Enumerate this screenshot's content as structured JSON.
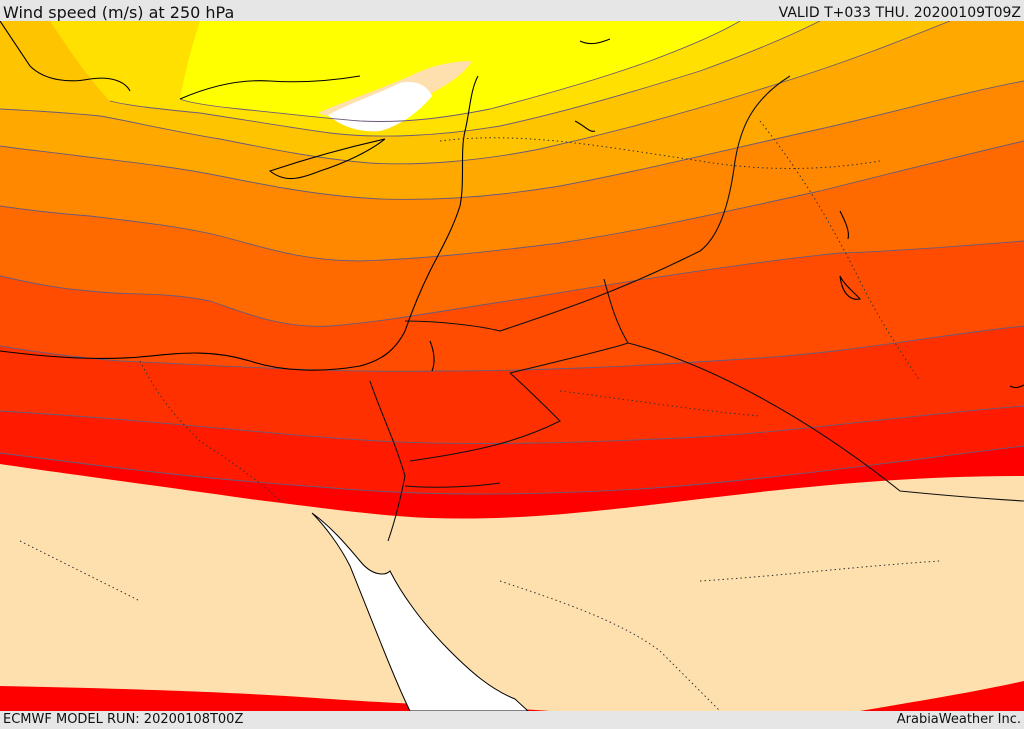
{
  "header": {
    "title": "Wind speed (m/s) at 250 hPa",
    "valid": "VALID T+033 THU. 20200109T09Z"
  },
  "footer": {
    "model_run": "ECMWF MODEL RUN: 20200108T00Z",
    "credit": "ArabiaWeather Inc."
  },
  "map": {
    "field": "wind speed",
    "level": "250 hPa",
    "colors": {
      "calm": "#ffffff",
      "weak": "#fde0ad",
      "band_1": "#ffff00",
      "band_2": "#ffe000",
      "band_3": "#ffc400",
      "band_4": "#ffa800",
      "band_5": "#ff8800",
      "band_6": "#ff6a00",
      "band_7": "#ff4c00",
      "band_8": "#ff3000",
      "band_9": "#ff1a00",
      "band_10": "#ff0000",
      "contour": "#6a5a7a",
      "coastline": "#000000",
      "borders": "#333333"
    }
  }
}
